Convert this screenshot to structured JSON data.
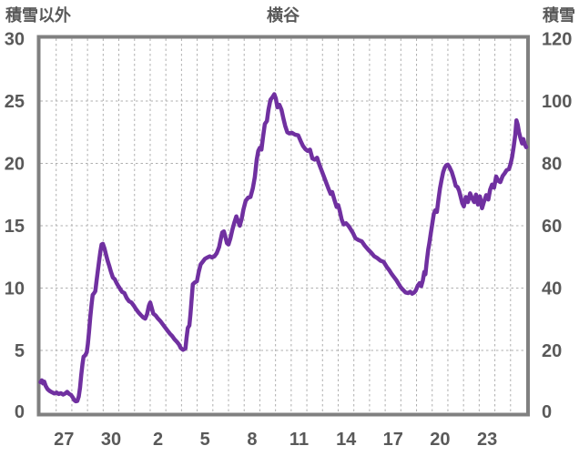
{
  "header": {
    "left_axis_title": "積雪以外",
    "chart_title": "横谷",
    "right_axis_title": "積雪"
  },
  "colors": {
    "line": "#7030A0",
    "border": "#808080",
    "grid": "#AFAFAF",
    "text": "#595959",
    "background": "#FFFFFF"
  },
  "chart_data": {
    "type": "line",
    "title": "横谷",
    "y_left_label": "積雪以外",
    "y_right_label": "積雪",
    "y_left_ticks": [
      "30",
      "25",
      "20",
      "15",
      "10",
      "5",
      "0"
    ],
    "y_right_ticks": [
      "120",
      "100",
      "80",
      "60",
      "40",
      "20",
      "0"
    ],
    "x_ticks": [
      "27",
      "30",
      "2",
      "5",
      "8",
      "11",
      "14",
      "17",
      "20",
      "23"
    ],
    "x_tick_slot_indices": [
      1,
      4,
      7,
      10,
      13,
      16,
      19,
      22,
      25,
      28
    ],
    "x_days_span": 31,
    "y_left_range": [
      0,
      30
    ],
    "y_right_range": [
      0,
      120
    ],
    "grid": true,
    "legend": "none",
    "line_color": "#7030A0",
    "series": [
      {
        "name": "横谷",
        "axis": "left",
        "x_unit": "days from start of axis (day 26)",
        "points": [
          [
            0,
            2.45
          ],
          [
            0.08,
            2.6
          ],
          [
            0.16,
            2.35
          ],
          [
            0.24,
            2.5
          ],
          [
            0.33,
            2.15
          ],
          [
            0.45,
            1.9
          ],
          [
            0.58,
            1.75
          ],
          [
            0.72,
            1.65
          ],
          [
            0.88,
            1.55
          ],
          [
            1.02,
            1.62
          ],
          [
            1.16,
            1.5
          ],
          [
            1.3,
            1.57
          ],
          [
            1.44,
            1.46
          ],
          [
            1.58,
            1.55
          ],
          [
            1.7,
            1.68
          ],
          [
            1.82,
            1.52
          ],
          [
            1.95,
            1.42
          ],
          [
            2.05,
            1.25
          ],
          [
            2.15,
            1.02
          ],
          [
            2.25,
            0.92
          ],
          [
            2.35,
            0.95
          ],
          [
            2.44,
            1.3
          ],
          [
            2.52,
            2.0
          ],
          [
            2.6,
            3.0
          ],
          [
            2.68,
            3.9
          ],
          [
            2.75,
            4.5
          ],
          [
            2.85,
            4.6
          ],
          [
            2.95,
            4.85
          ],
          [
            3.02,
            5.5
          ],
          [
            3.1,
            6.5
          ],
          [
            3.18,
            7.7
          ],
          [
            3.26,
            8.7
          ],
          [
            3.33,
            9.45
          ],
          [
            3.42,
            9.6
          ],
          [
            3.5,
            9.75
          ],
          [
            3.58,
            10.6
          ],
          [
            3.66,
            11.4
          ],
          [
            3.74,
            12.2
          ],
          [
            3.82,
            12.9
          ],
          [
            3.9,
            13.5
          ],
          [
            3.98,
            13.55
          ],
          [
            4.08,
            13.2
          ],
          [
            4.18,
            12.7
          ],
          [
            4.28,
            12.2
          ],
          [
            4.38,
            11.8
          ],
          [
            4.5,
            11.3
          ],
          [
            4.62,
            10.85
          ],
          [
            4.74,
            10.7
          ],
          [
            4.86,
            10.4
          ],
          [
            4.95,
            10.2
          ],
          [
            5.05,
            10.0
          ],
          [
            5.2,
            9.7
          ],
          [
            5.35,
            9.6
          ],
          [
            5.5,
            9.2
          ],
          [
            5.65,
            8.95
          ],
          [
            5.8,
            8.85
          ],
          [
            5.95,
            8.6
          ],
          [
            6.1,
            8.3
          ],
          [
            6.25,
            8.05
          ],
          [
            6.4,
            7.85
          ],
          [
            6.55,
            7.65
          ],
          [
            6.68,
            7.55
          ],
          [
            6.8,
            7.9
          ],
          [
            6.92,
            8.6
          ],
          [
            7.0,
            8.85
          ],
          [
            7.1,
            8.4
          ],
          [
            7.2,
            7.95
          ],
          [
            7.35,
            7.8
          ],
          [
            7.5,
            7.55
          ],
          [
            7.65,
            7.35
          ],
          [
            7.8,
            7.1
          ],
          [
            7.95,
            6.85
          ],
          [
            8.1,
            6.6
          ],
          [
            8.25,
            6.35
          ],
          [
            8.4,
            6.15
          ],
          [
            8.55,
            5.9
          ],
          [
            8.7,
            5.7
          ],
          [
            8.85,
            5.45
          ],
          [
            8.95,
            5.2
          ],
          [
            9.1,
            5.05
          ],
          [
            9.25,
            5.15
          ],
          [
            9.32,
            6.0
          ],
          [
            9.4,
            6.8
          ],
          [
            9.5,
            7.0
          ],
          [
            9.57,
            7.9
          ],
          [
            9.65,
            9.2
          ],
          [
            9.72,
            10.3
          ],
          [
            9.85,
            10.45
          ],
          [
            9.98,
            10.55
          ],
          [
            10.1,
            11.3
          ],
          [
            10.22,
            11.9
          ],
          [
            10.35,
            12.1
          ],
          [
            10.5,
            12.35
          ],
          [
            10.65,
            12.45
          ],
          [
            10.8,
            12.55
          ],
          [
            10.95,
            12.45
          ],
          [
            11.1,
            12.55
          ],
          [
            11.25,
            12.8
          ],
          [
            11.4,
            13.3
          ],
          [
            11.5,
            13.9
          ],
          [
            11.6,
            14.45
          ],
          [
            11.7,
            14.55
          ],
          [
            11.8,
            14.1
          ],
          [
            11.9,
            13.6
          ],
          [
            12.0,
            13.5
          ],
          [
            12.12,
            14.0
          ],
          [
            12.25,
            14.7
          ],
          [
            12.38,
            15.3
          ],
          [
            12.5,
            15.75
          ],
          [
            12.6,
            15.4
          ],
          [
            12.72,
            15.0
          ],
          [
            12.85,
            15.6
          ],
          [
            12.95,
            16.3
          ],
          [
            13.1,
            17.0
          ],
          [
            13.25,
            17.25
          ],
          [
            13.4,
            17.3
          ],
          [
            13.55,
            18.0
          ],
          [
            13.68,
            18.9
          ],
          [
            13.8,
            20.3
          ],
          [
            13.9,
            21.0
          ],
          [
            14.0,
            21.25
          ],
          [
            14.1,
            21.1
          ],
          [
            14.2,
            22.1
          ],
          [
            14.32,
            23.15
          ],
          [
            14.45,
            23.4
          ],
          [
            14.55,
            24.3
          ],
          [
            14.68,
            25.1
          ],
          [
            14.8,
            25.3
          ],
          [
            14.92,
            25.55
          ],
          [
            15.02,
            25.2
          ],
          [
            15.12,
            24.5
          ],
          [
            15.25,
            24.7
          ],
          [
            15.38,
            24.3
          ],
          [
            15.5,
            23.6
          ],
          [
            15.62,
            23.0
          ],
          [
            15.75,
            22.5
          ],
          [
            15.88,
            22.4
          ],
          [
            16.05,
            22.45
          ],
          [
            16.25,
            22.3
          ],
          [
            16.45,
            22.25
          ],
          [
            16.6,
            21.8
          ],
          [
            16.75,
            21.4
          ],
          [
            16.9,
            21.15
          ],
          [
            17.05,
            21.0
          ],
          [
            17.2,
            21.1
          ],
          [
            17.35,
            20.4
          ],
          [
            17.5,
            20.3
          ],
          [
            17.65,
            20.45
          ],
          [
            17.8,
            19.9
          ],
          [
            17.95,
            19.4
          ],
          [
            18.1,
            18.9
          ],
          [
            18.25,
            18.4
          ],
          [
            18.4,
            17.9
          ],
          [
            18.52,
            17.55
          ],
          [
            18.62,
            17.7
          ],
          [
            18.75,
            17.1
          ],
          [
            18.9,
            16.5
          ],
          [
            19.0,
            16.65
          ],
          [
            19.1,
            16.2
          ],
          [
            19.22,
            15.5
          ],
          [
            19.35,
            15.1
          ],
          [
            19.5,
            15.2
          ],
          [
            19.65,
            15.0
          ],
          [
            19.8,
            14.7
          ],
          [
            19.95,
            14.4
          ],
          [
            20.1,
            14.0
          ],
          [
            20.3,
            13.85
          ],
          [
            20.5,
            13.75
          ],
          [
            20.7,
            13.4
          ],
          [
            20.9,
            13.1
          ],
          [
            21.1,
            12.85
          ],
          [
            21.3,
            12.55
          ],
          [
            21.5,
            12.4
          ],
          [
            21.7,
            12.2
          ],
          [
            21.9,
            12.1
          ],
          [
            22.1,
            11.7
          ],
          [
            22.25,
            11.45
          ],
          [
            22.4,
            11.15
          ],
          [
            22.55,
            10.9
          ],
          [
            22.7,
            10.65
          ],
          [
            22.85,
            10.35
          ],
          [
            23.0,
            10.05
          ],
          [
            23.15,
            9.85
          ],
          [
            23.3,
            9.65
          ],
          [
            23.45,
            9.6
          ],
          [
            23.6,
            9.7
          ],
          [
            23.72,
            9.55
          ],
          [
            23.85,
            9.65
          ],
          [
            23.95,
            9.8
          ],
          [
            24.08,
            10.2
          ],
          [
            24.2,
            10.4
          ],
          [
            24.3,
            10.15
          ],
          [
            24.4,
            10.6
          ],
          [
            24.5,
            11.3
          ],
          [
            24.57,
            11.1
          ],
          [
            24.65,
            12.1
          ],
          [
            24.75,
            13.1
          ],
          [
            24.82,
            13.6
          ],
          [
            24.9,
            14.3
          ],
          [
            25.0,
            15.1
          ],
          [
            25.1,
            15.95
          ],
          [
            25.2,
            16.25
          ],
          [
            25.3,
            16.1
          ],
          [
            25.4,
            17.1
          ],
          [
            25.5,
            18.0
          ],
          [
            25.6,
            18.7
          ],
          [
            25.7,
            19.3
          ],
          [
            25.8,
            19.65
          ],
          [
            25.9,
            19.85
          ],
          [
            26.0,
            19.9
          ],
          [
            26.1,
            19.7
          ],
          [
            26.25,
            19.3
          ],
          [
            26.4,
            18.7
          ],
          [
            26.5,
            18.2
          ],
          [
            26.62,
            18.1
          ],
          [
            26.72,
            17.8
          ],
          [
            26.82,
            17.3
          ],
          [
            26.92,
            16.8
          ],
          [
            27.02,
            16.55
          ],
          [
            27.15,
            17.3
          ],
          [
            27.28,
            16.9
          ],
          [
            27.42,
            17.6
          ],
          [
            27.55,
            17.2
          ],
          [
            27.68,
            16.9
          ],
          [
            27.8,
            17.5
          ],
          [
            27.92,
            16.7
          ],
          [
            28.05,
            17.35
          ],
          [
            28.18,
            16.4
          ],
          [
            28.3,
            16.9
          ],
          [
            28.45,
            17.45
          ],
          [
            28.58,
            17.1
          ],
          [
            28.7,
            17.9
          ],
          [
            28.82,
            18.3
          ],
          [
            28.95,
            18.05
          ],
          [
            29.08,
            18.95
          ],
          [
            29.22,
            18.6
          ],
          [
            29.35,
            18.5
          ],
          [
            29.5,
            19.0
          ],
          [
            29.62,
            19.2
          ],
          [
            29.75,
            19.45
          ],
          [
            29.9,
            19.55
          ],
          [
            30.0,
            19.95
          ],
          [
            30.1,
            20.5
          ],
          [
            30.2,
            21.3
          ],
          [
            30.3,
            22.3
          ],
          [
            30.38,
            23.45
          ],
          [
            30.46,
            23.1
          ],
          [
            30.54,
            22.5
          ],
          [
            30.64,
            22.0
          ],
          [
            30.74,
            21.6
          ],
          [
            30.82,
            21.95
          ],
          [
            30.9,
            21.55
          ],
          [
            31.0,
            21.3
          ]
        ]
      }
    ]
  }
}
